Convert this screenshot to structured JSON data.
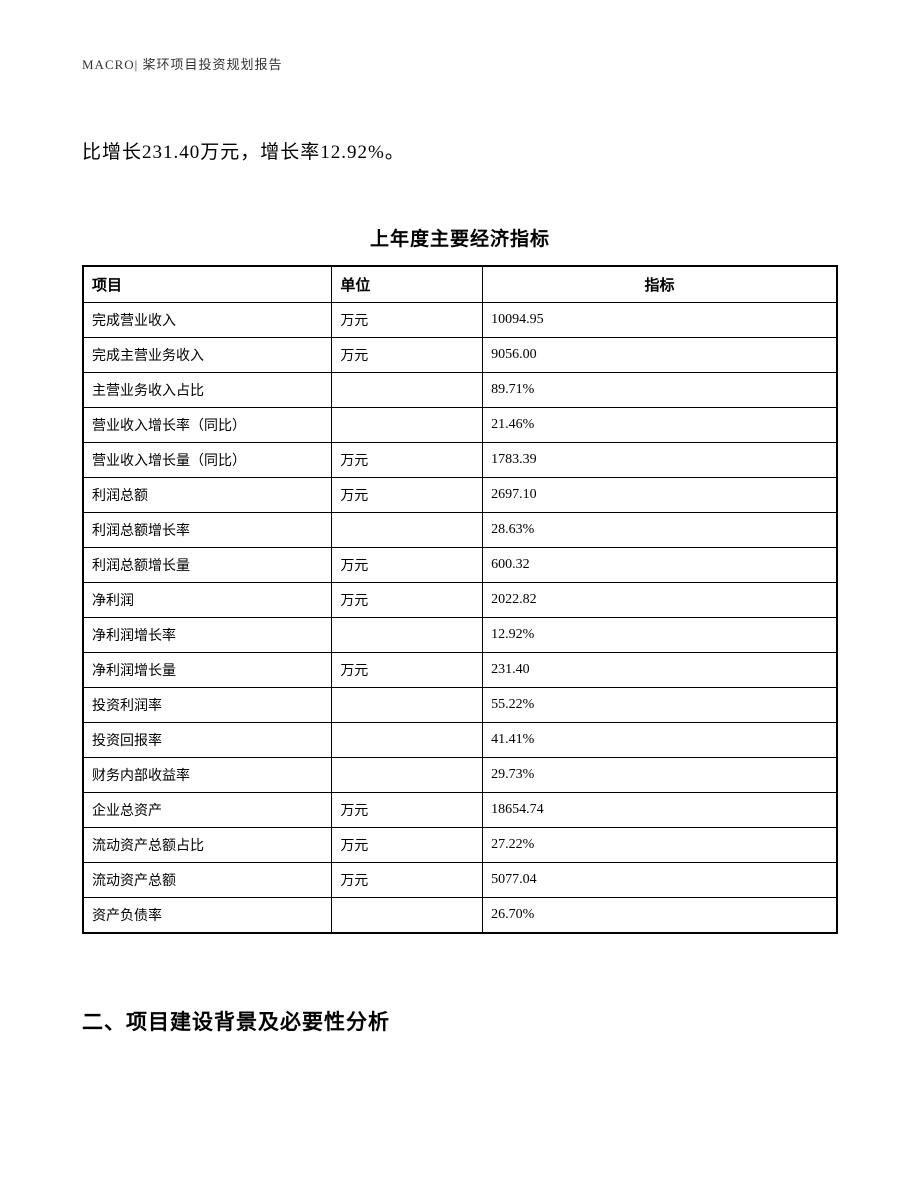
{
  "header": {
    "text": "MACRO|  桨环项目投资规划报告"
  },
  "intro": {
    "text": "比增长231.40万元，增长率12.92%。"
  },
  "table": {
    "title": "上年度主要经济指标",
    "columns": {
      "item": "项目",
      "unit": "单位",
      "indicator": "指标"
    },
    "rows": [
      {
        "item": "完成营业收入",
        "unit": "万元",
        "value": "10094.95"
      },
      {
        "item": "完成主营业务收入",
        "unit": "万元",
        "value": "9056.00"
      },
      {
        "item": "主营业务收入占比",
        "unit": "",
        "value": "89.71%"
      },
      {
        "item": "营业收入增长率（同比）",
        "unit": "",
        "value": "21.46%"
      },
      {
        "item": "营业收入增长量（同比）",
        "unit": "万元",
        "value": "1783.39"
      },
      {
        "item": "利润总额",
        "unit": "万元",
        "value": "2697.10"
      },
      {
        "item": "利润总额增长率",
        "unit": "",
        "value": "28.63%"
      },
      {
        "item": "利润总额增长量",
        "unit": "万元",
        "value": "600.32"
      },
      {
        "item": "净利润",
        "unit": "万元",
        "value": "2022.82"
      },
      {
        "item": "净利润增长率",
        "unit": "",
        "value": "12.92%"
      },
      {
        "item": "净利润增长量",
        "unit": "万元",
        "value": "231.40"
      },
      {
        "item": "投资利润率",
        "unit": "",
        "value": "55.22%"
      },
      {
        "item": "投资回报率",
        "unit": "",
        "value": "41.41%"
      },
      {
        "item": "财务内部收益率",
        "unit": "",
        "value": "29.73%"
      },
      {
        "item": "企业总资产",
        "unit": "万元",
        "value": "18654.74"
      },
      {
        "item": "流动资产总额占比",
        "unit": "万元",
        "value": "27.22%"
      },
      {
        "item": "流动资产总额",
        "unit": "万元",
        "value": "5077.04"
      },
      {
        "item": "资产负债率",
        "unit": "",
        "value": "26.70%"
      }
    ]
  },
  "section2": {
    "heading": "二、项目建设背景及必要性分析"
  }
}
